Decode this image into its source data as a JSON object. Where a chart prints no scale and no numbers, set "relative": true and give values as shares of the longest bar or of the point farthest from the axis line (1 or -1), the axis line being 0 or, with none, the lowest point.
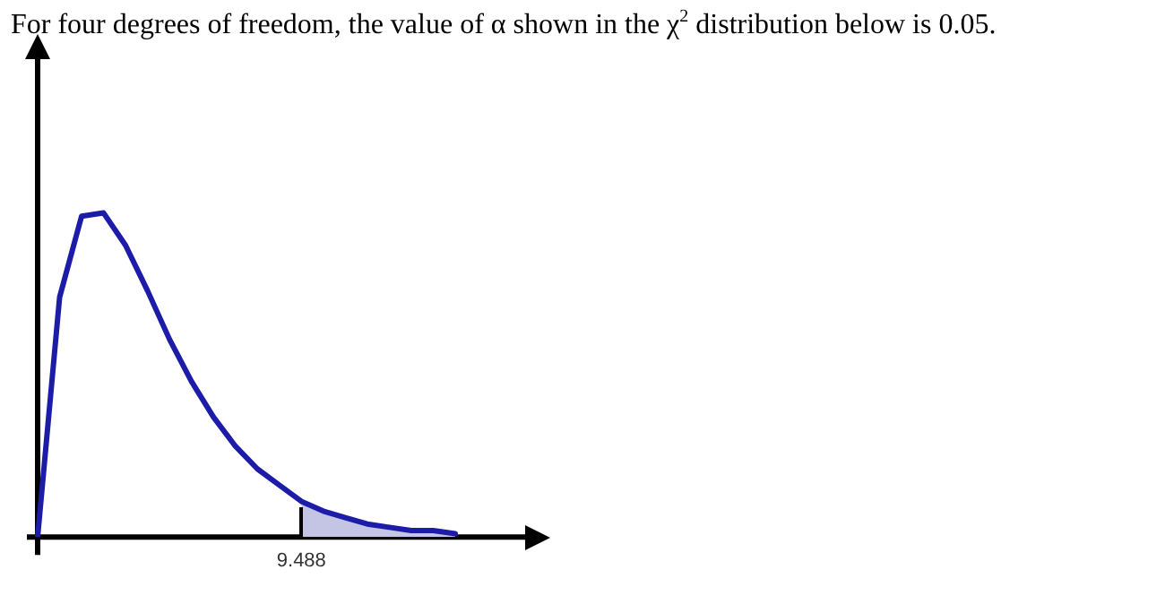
{
  "chart_data": {
    "type": "line",
    "title": "For four degrees of freedom, the value of α shown in the χ$^{2}$ distribution below is 0.05.",
    "relative": true,
    "categories": [
      null,
      null,
      null,
      null,
      null,
      null,
      null,
      null,
      null,
      null,
      null,
      null,
      null,
      null,
      null,
      null,
      null,
      null,
      null,
      null
    ],
    "series": [
      {
        "color": "#c4c4e4",
        "type": "area",
        "values": [
          null,
          null,
          null,
          null,
          null,
          null,
          null,
          null,
          null,
          null,
          null,
          null,
          0.11,
          0.08,
          0.06,
          0.04,
          0.03,
          0.02,
          0.02,
          0.01
        ]
      },
      {
        "color": "#1c1ca8",
        "values": [
          0,
          0.74,
          0.99,
          1,
          0.9,
          0.76,
          0.61,
          0.48,
          0.37,
          0.28,
          0.21,
          0.16,
          0.11,
          0.08,
          0.06,
          0.04,
          0.03,
          0.02,
          0.02,
          0.01
        ]
      }
    ],
    "legend": false,
    "marker": "none",
    "line_style": "solid",
    "annotations": [
      "9.488"
    ]
  }
}
